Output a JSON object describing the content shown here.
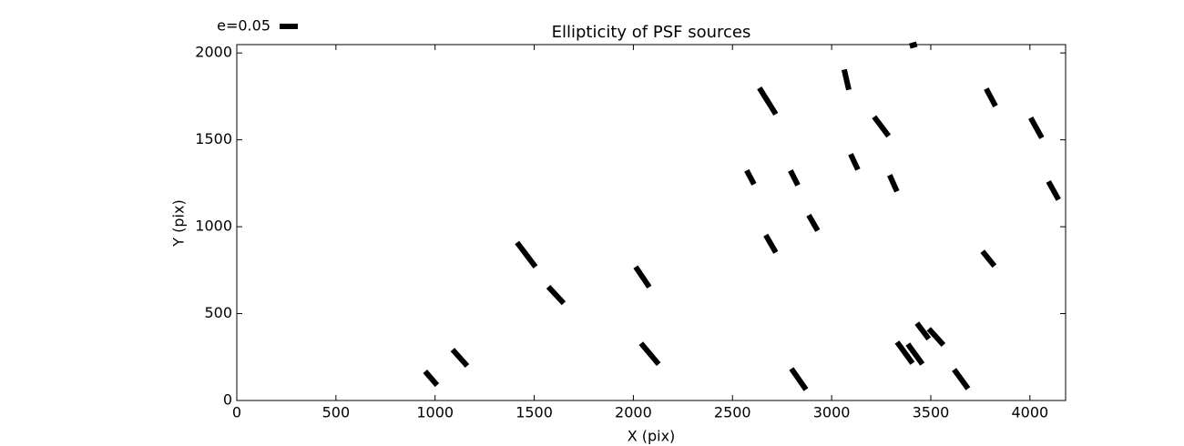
{
  "chart_data": {
    "type": "whisker",
    "title": "Ellipticity of PSF sources",
    "x_label": "X (pix)",
    "y_label": "Y (pix)",
    "x": [
      980,
      1125,
      1460,
      1610,
      2046,
      2083,
      2590,
      2677,
      2693,
      2811,
      2834,
      2907,
      3075,
      3114,
      3251,
      3311,
      3369,
      3421,
      3412,
      3460,
      3527,
      3653,
      3803,
      3791,
      4032,
      4119
    ],
    "y": [
      128,
      246,
      839,
      607,
      711,
      269,
      1284,
      1723,
      902,
      1281,
      123,
      1022,
      1846,
      1373,
      1577,
      1250,
      275,
      267,
      2045,
      400,
      366,
      123,
      1744,
      816,
      1569,
      1208
    ],
    "values": [
      0.05,
      0.06,
      0.084,
      0.062,
      0.067,
      0.075,
      0.043,
      0.085,
      0.055,
      0.045,
      0.07,
      0.049,
      0.057,
      0.047,
      0.066,
      0.049,
      0.072,
      0.068,
      0.02,
      0.054,
      0.06,
      0.065,
      0.054,
      0.052,
      0.063,
      0.057
    ],
    "angles": [
      -49,
      -48,
      -53,
      -47,
      -56,
      -50,
      -62,
      -58,
      -60,
      -63,
      -55,
      -60,
      -77,
      -65,
      -53,
      -66,
      -54,
      -54,
      15,
      -53,
      -48,
      -54,
      -62,
      -51,
      -61,
      -61
    ],
    "color": "#000000",
    "key": {
      "label": "e=0.05",
      "value": 0.05
    },
    "xlim": [
      0,
      4180
    ],
    "ylim": [
      0,
      2048
    ],
    "xticks": [
      0,
      500,
      1000,
      1500,
      2000,
      2500,
      3000,
      3500,
      4000
    ],
    "yticks": [
      0,
      500,
      1000,
      1500,
      2000
    ]
  }
}
